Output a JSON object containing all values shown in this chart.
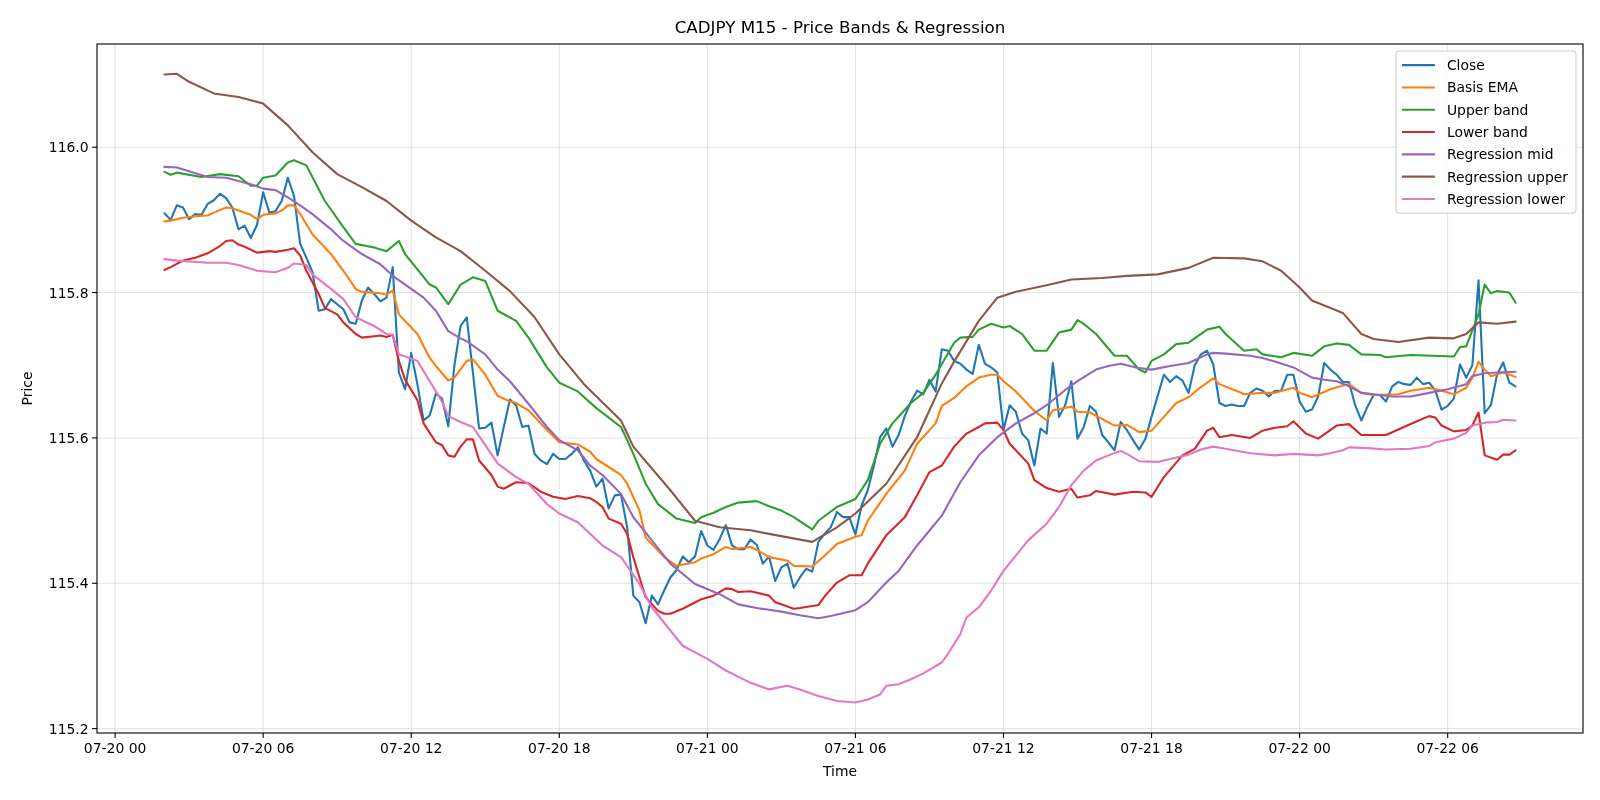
{
  "chart_data": {
    "type": "line",
    "title": "CADJPY M15 - Price Bands & Regression",
    "xlabel": "Time",
    "ylabel": "Price",
    "xlim": [
      "--07-19T23:16",
      "--07-22T11:29"
    ],
    "ylim": [
      115.194,
      116.142
    ],
    "xticks": [
      {
        "value": "--07-20T00:00",
        "label": "07-20 00"
      },
      {
        "value": "--07-20T06:00",
        "label": "07-20 06"
      },
      {
        "value": "--07-20T12:00",
        "label": "07-20 12"
      },
      {
        "value": "--07-20T18:00",
        "label": "07-20 18"
      },
      {
        "value": "--07-21T00:00",
        "label": "07-21 00"
      },
      {
        "value": "--07-21T06:00",
        "label": "07-21 06"
      },
      {
        "value": "--07-21T12:00",
        "label": "07-21 12"
      },
      {
        "value": "--07-21T18:00",
        "label": "07-21 18"
      },
      {
        "value": "--07-22T00:00",
        "label": "07-22 00"
      },
      {
        "value": "--07-22T06:00",
        "label": "07-22 06"
      }
    ],
    "yticks": [
      115.2,
      115.4,
      115.6,
      115.8,
      {
        "value": 116,
        "label": "116.0"
      }
    ],
    "grid": true,
    "legend": "top right",
    "series": [
      {
        "name": "Close",
        "color": "#1f77b4",
        "x": [
          "--07-20T02:00",
          "--07-20T02:15",
          "--07-20T02:30",
          "--07-20T02:45",
          "--07-20T03:00",
          "--07-20T03:15",
          "--07-20T03:30",
          "--07-20T03:45",
          "--07-20T04:00",
          "--07-20T04:15",
          "--07-20T04:30",
          "--07-20T04:45",
          "--07-20T05:00",
          "--07-20T05:15",
          "--07-20T05:30",
          "--07-20T05:45",
          "--07-20T06:00",
          "--07-20T06:15",
          "--07-20T06:30",
          "--07-20T06:45",
          "--07-20T07:00",
          "--07-20T07:15",
          "--07-20T07:30",
          "--07-20T07:45",
          "--07-20T08:00",
          "--07-20T08:15",
          "--07-20T08:30",
          "--07-20T08:45",
          "--07-20T09:00",
          "--07-20T09:15",
          "--07-20T09:30",
          "--07-20T09:45",
          "--07-20T10:00",
          "--07-20T10:15",
          "--07-20T10:30",
          "--07-20T10:45",
          "--07-20T11:00",
          "--07-20T11:15",
          "--07-20T11:30",
          "--07-20T11:45",
          "--07-20T12:00",
          "--07-20T12:15",
          "--07-20T12:30",
          "--07-20T12:45",
          "--07-20T13:00",
          "--07-20T13:15",
          "--07-20T13:30",
          "--07-20T13:45",
          "--07-20T14:00",
          "--07-20T14:15",
          "--07-20T14:30",
          "--07-20T14:45",
          "--07-20T15:00",
          "--07-20T15:15",
          "--07-20T15:30",
          "--07-20T15:45",
          "--07-20T16:00",
          "--07-20T16:15",
          "--07-20T16:30",
          "--07-20T16:45",
          "--07-20T17:00",
          "--07-20T17:15",
          "--07-20T17:30",
          "--07-20T17:45",
          "--07-20T18:00",
          "--07-20T18:15",
          "--07-20T18:30",
          "--07-20T18:45",
          "--07-20T19:00",
          "--07-20T19:15",
          "--07-20T19:30",
          "--07-20T19:45",
          "--07-20T20:00",
          "--07-20T20:15",
          "--07-20T20:30",
          "--07-20T20:45",
          "--07-20T21:00",
          "--07-20T21:15",
          "--07-20T21:30",
          "--07-20T21:45",
          "--07-20T22:00",
          "--07-20T22:15",
          "--07-20T22:30",
          "--07-20T22:45",
          "--07-20T23:00",
          "--07-20T23:15",
          "--07-20T23:30",
          "--07-20T23:45",
          "--07-21T00:00",
          "--07-21T00:15",
          "--07-21T00:30",
          "--07-21T00:45",
          "--07-21T01:00",
          "--07-21T01:15",
          "--07-21T01:30",
          "--07-21T01:45",
          "--07-21T02:00",
          "--07-21T02:15",
          "--07-21T02:30",
          "--07-21T02:45",
          "--07-21T03:00",
          "--07-21T03:15",
          "--07-21T03:30",
          "--07-21T03:45",
          "--07-21T04:00",
          "--07-21T04:15",
          "--07-21T04:30",
          "--07-21T04:45",
          "--07-21T05:00",
          "--07-21T05:15",
          "--07-21T05:30",
          "--07-21T05:45",
          "--07-21T06:00",
          "--07-21T06:15",
          "--07-21T06:30",
          "--07-21T06:45",
          "--07-21T07:00",
          "--07-21T07:15",
          "--07-21T07:30",
          "--07-21T07:45",
          "--07-21T08:00",
          "--07-21T08:15",
          "--07-21T08:30",
          "--07-21T08:45",
          "--07-21T09:00",
          "--07-21T09:15",
          "--07-21T09:30",
          "--07-21T09:45",
          "--07-21T10:00",
          "--07-21T10:15",
          "--07-21T10:30",
          "--07-21T10:45",
          "--07-21T11:00",
          "--07-21T11:15",
          "--07-21T11:30",
          "--07-21T11:45",
          "--07-21T12:00",
          "--07-21T12:15",
          "--07-21T12:30",
          "--07-21T12:45",
          "--07-21T13:00",
          "--07-21T13:15",
          "--07-21T13:30",
          "--07-21T13:45",
          "--07-21T14:00",
          "--07-21T14:15",
          "--07-21T14:30",
          "--07-21T14:45",
          "--07-21T15:00",
          "--07-21T15:15",
          "--07-21T15:30",
          "--07-21T15:45",
          "--07-21T16:00",
          "--07-21T16:15",
          "--07-21T16:30",
          "--07-21T16:45",
          "--07-21T17:00",
          "--07-21T17:15",
          "--07-21T17:30",
          "--07-21T17:45",
          "--07-21T18:00",
          "--07-21T18:15",
          "--07-21T18:30",
          "--07-21T18:45",
          "--07-21T19:00",
          "--07-21T19:15",
          "--07-21T19:30",
          "--07-21T19:45",
          "--07-21T20:00",
          "--07-21T20:15",
          "--07-21T20:30",
          "--07-21T20:45",
          "--07-21T21:00",
          "--07-21T21:15",
          "--07-21T21:30",
          "--07-21T21:45",
          "--07-21T22:00",
          "--07-21T22:15",
          "--07-21T22:30",
          "--07-21T22:45",
          "--07-21T23:00",
          "--07-21T23:15",
          "--07-21T23:30",
          "--07-21T23:45",
          "--07-22T00:00",
          "--07-22T00:15",
          "--07-22T00:30",
          "--07-22T00:45",
          "--07-22T01:00",
          "--07-22T01:15",
          "--07-22T01:30",
          "--07-22T01:45",
          "--07-22T02:00",
          "--07-22T02:15",
          "--07-22T02:30",
          "--07-22T02:45",
          "--07-22T03:00",
          "--07-22T03:15",
          "--07-22T03:30",
          "--07-22T03:45",
          "--07-22T04:00",
          "--07-22T04:15",
          "--07-22T04:30",
          "--07-22T04:45",
          "--07-22T05:00",
          "--07-22T05:15",
          "--07-22T05:30",
          "--07-22T05:45",
          "--07-22T06:00",
          "--07-22T06:15",
          "--07-22T06:30",
          "--07-22T06:45",
          "--07-22T07:00",
          "--07-22T07:15",
          "--07-22T07:30",
          "--07-22T07:45",
          "--07-22T08:00",
          "--07-22T08:15",
          "--07-22T08:30",
          "--07-22T08:45"
        ],
        "values": [
          115.909,
          115.9,
          115.92,
          115.917,
          115.901,
          115.908,
          115.907,
          115.922,
          115.927,
          115.936,
          115.93,
          115.917,
          115.887,
          115.892,
          115.875,
          115.893,
          115.938,
          115.91,
          115.912,
          115.926,
          115.958,
          115.933,
          115.867,
          115.848,
          115.828,
          115.775,
          115.777,
          115.791,
          115.784,
          115.777,
          115.759,
          115.757,
          115.789,
          115.807,
          115.798,
          115.788,
          115.793,
          115.835,
          115.69,
          115.667,
          115.717,
          115.674,
          115.624,
          115.631,
          115.661,
          115.654,
          115.616,
          115.7,
          115.754,
          115.766,
          115.69,
          115.613,
          115.614,
          115.621,
          115.576,
          115.615,
          115.653,
          115.645,
          115.615,
          115.617,
          115.578,
          115.569,
          115.564,
          115.578,
          115.571,
          115.571,
          115.578,
          115.587,
          115.569,
          115.555,
          115.533,
          115.544,
          115.503,
          115.521,
          115.522,
          115.477,
          115.383,
          115.374,
          115.345,
          115.383,
          115.371,
          115.39,
          115.408,
          115.418,
          115.437,
          115.429,
          115.437,
          115.472,
          115.452,
          115.446,
          115.461,
          115.48,
          115.452,
          115.447,
          115.447,
          115.46,
          115.453,
          115.427,
          115.437,
          115.403,
          115.422,
          115.427,
          115.394,
          115.408,
          115.42,
          115.416,
          115.457,
          115.468,
          115.477,
          115.498,
          115.491,
          115.491,
          115.467,
          115.507,
          115.528,
          115.562,
          115.601,
          115.613,
          115.588,
          115.604,
          115.63,
          115.65,
          115.665,
          115.66,
          115.68,
          115.664,
          115.722,
          115.72,
          115.706,
          115.702,
          115.694,
          115.688,
          115.728,
          115.702,
          115.697,
          115.69,
          115.611,
          115.645,
          115.636,
          115.606,
          115.597,
          115.562,
          115.613,
          115.606,
          115.703,
          115.629,
          115.645,
          115.678,
          115.599,
          115.615,
          115.644,
          115.636,
          115.604,
          115.594,
          115.583,
          115.622,
          115.611,
          115.597,
          115.584,
          115.599,
          115.629,
          115.658,
          115.687,
          115.677,
          115.685,
          115.679,
          115.662,
          115.7,
          115.715,
          115.72,
          115.701,
          115.648,
          115.644,
          115.646,
          115.644,
          115.644,
          115.662,
          115.668,
          115.665,
          115.657,
          115.665,
          115.665,
          115.687,
          115.687,
          115.65,
          115.636,
          115.639,
          115.657,
          115.703,
          115.694,
          115.687,
          115.677,
          115.677,
          115.645,
          115.624,
          115.643,
          115.659,
          115.659,
          115.65,
          115.671,
          115.677,
          115.674,
          115.673,
          115.683,
          115.674,
          115.676,
          115.665,
          115.639,
          115.644,
          115.654,
          115.701,
          115.683,
          115.7,
          115.817,
          115.634,
          115.645,
          115.687,
          115.704,
          115.676,
          115.671
        ]
      },
      {
        "name": "Basis EMA",
        "color": "#ff7f0e",
        "x": [
          "--07-20T02:00",
          "--07-20T02:15",
          "--07-20T02:45",
          "--07-20T03:15",
          "--07-20T03:45",
          "--07-20T04:00",
          "--07-20T04:30",
          "--07-20T04:45",
          "--07-20T05:30",
          "--07-20T05:45",
          "--07-20T06:00",
          "--07-20T06:30",
          "--07-20T06:45",
          "--07-20T07:00",
          "--07-20T07:15",
          "--07-20T07:30",
          "--07-20T08:00",
          "--07-20T08:45",
          "--07-20T09:15",
          "--07-20T09:45",
          "--07-20T10:00",
          "--07-20T10:45",
          "--07-20T11:00",
          "--07-20T11:15",
          "--07-20T11:30",
          "--07-20T12:15",
          "--07-20T12:45",
          "--07-20T13:00",
          "--07-20T13:30",
          "--07-20T13:45",
          "--07-20T14:15",
          "--07-20T14:30",
          "--07-20T15:00",
          "--07-20T15:30",
          "--07-20T16:00",
          "--07-20T16:15",
          "--07-20T16:45",
          "--07-20T17:30",
          "--07-20T18:00",
          "--07-20T18:45",
          "--07-20T19:15",
          "--07-20T19:30",
          "--07-20T20:00",
          "--07-20T20:30",
          "--07-20T20:45",
          "--07-20T21:15",
          "--07-20T21:30",
          "--07-20T22:15",
          "--07-20T22:45",
          "--07-20T23:30",
          "--07-20T23:45",
          "--07-21T00:15",
          "--07-21T00:45",
          "--07-21T01:00",
          "--07-21T01:45",
          "--07-21T02:00",
          "--07-21T02:30",
          "--07-21T03:15",
          "--07-21T03:30",
          "--07-21T04:15",
          "--07-21T04:45",
          "--07-21T05:15",
          "--07-21T06:00",
          "--07-21T06:15",
          "--07-21T06:30",
          "--07-21T07:15",
          "--07-21T08:00",
          "--07-21T08:30",
          "--07-21T09:15",
          "--07-21T09:30",
          "--07-21T10:00",
          "--07-21T10:30",
          "--07-21T11:00",
          "--07-21T11:30",
          "--07-21T11:45",
          "--07-21T12:00",
          "--07-21T12:30",
          "--07-21T13:00",
          "--07-21T13:15",
          "--07-21T13:45",
          "--07-21T14:00",
          "--07-21T14:45",
          "--07-21T15:00",
          "--07-21T15:30",
          "--07-21T16:30",
          "--07-21T17:00",
          "--07-21T17:30",
          "--07-21T18:00",
          "--07-21T18:30",
          "--07-21T19:00",
          "--07-21T19:30",
          "--07-21T20:00",
          "--07-21T20:30",
          "--07-21T20:45",
          "--07-21T21:30",
          "--07-21T21:45",
          "--07-21T22:30",
          "--07-21T23:00",
          "--07-21T23:45",
          "--07-22T00:00",
          "--07-22T00:30",
          "--07-22T01:15",
          "--07-22T01:45",
          "--07-22T02:00",
          "--07-22T02:30",
          "--07-22T03:00",
          "--07-22T04:00",
          "--07-22T04:30",
          "--07-22T05:15",
          "--07-22T05:45",
          "--07-22T06:15",
          "--07-22T06:45",
          "--07-22T07:00",
          "--07-22T07:15",
          "--07-22T07:30",
          "--07-22T07:45",
          "--07-22T08:15",
          "--07-22T08:45"
        ],
        "values": [
          115.898,
          115.899,
          115.903,
          115.905,
          115.906,
          115.91,
          115.917,
          115.916,
          115.907,
          115.901,
          115.907,
          115.909,
          115.913,
          115.92,
          115.92,
          115.908,
          115.88,
          115.853,
          115.83,
          115.805,
          115.801,
          115.799,
          115.797,
          115.803,
          115.77,
          115.743,
          115.71,
          115.699,
          115.679,
          115.683,
          115.706,
          115.708,
          115.687,
          115.658,
          115.65,
          115.648,
          115.638,
          115.611,
          115.594,
          115.591,
          115.581,
          115.571,
          115.56,
          115.549,
          115.537,
          115.5,
          115.463,
          115.436,
          115.424,
          115.429,
          115.434,
          115.44,
          115.45,
          115.447,
          115.45,
          115.446,
          115.436,
          115.431,
          115.424,
          115.423,
          115.438,
          115.454,
          115.464,
          115.466,
          115.486,
          115.523,
          115.555,
          115.592,
          115.62,
          115.644,
          115.655,
          115.671,
          115.683,
          115.687,
          115.687,
          115.678,
          115.664,
          115.646,
          115.637,
          115.624,
          115.638,
          115.643,
          115.636,
          115.635,
          115.617,
          115.618,
          115.608,
          115.61,
          115.629,
          115.648,
          115.656,
          115.67,
          115.682,
          115.674,
          115.664,
          115.66,
          115.662,
          115.662,
          115.669,
          115.662,
          115.656,
          115.667,
          115.672,
          115.674,
          115.662,
          115.659,
          115.66,
          115.665,
          115.669,
          115.665,
          115.66,
          115.669,
          115.683,
          115.705,
          115.694,
          115.685,
          115.69,
          115.684
        ]
      },
      {
        "name": "Upper band",
        "color": "#2ca02c",
        "x": [
          "--07-20T02:00",
          "--07-20T02:15",
          "--07-20T02:30",
          "--07-20T03:30",
          "--07-20T04:15",
          "--07-20T05:00",
          "--07-20T05:30",
          "--07-20T05:45",
          "--07-20T06:00",
          "--07-20T06:30",
          "--07-20T07:00",
          "--07-20T07:15",
          "--07-20T07:45",
          "--07-20T08:30",
          "--07-20T09:15",
          "--07-20T09:45",
          "--07-20T10:30",
          "--07-20T11:00",
          "--07-20T11:30",
          "--07-20T11:45",
          "--07-20T12:45",
          "--07-20T13:00",
          "--07-20T13:30",
          "--07-20T14:00",
          "--07-20T14:30",
          "--07-20T15:00",
          "--07-20T15:30",
          "--07-20T16:15",
          "--07-20T16:45",
          "--07-20T17:30",
          "--07-20T18:00",
          "--07-20T18:45",
          "--07-20T19:30",
          "--07-20T20:30",
          "--07-20T20:45",
          "--07-20T21:00",
          "--07-20T21:30",
          "--07-20T22:00",
          "--07-20T22:45",
          "--07-20T23:30",
          "--07-20T23:45",
          "--07-21T00:15",
          "--07-21T00:45",
          "--07-21T01:15",
          "--07-21T02:00",
          "--07-21T02:30",
          "--07-21T03:00",
          "--07-21T03:30",
          "--07-21T04:15",
          "--07-21T04:30",
          "--07-21T05:15",
          "--07-21T06:00",
          "--07-21T06:30",
          "--07-21T07:00",
          "--07-21T07:30",
          "--07-21T08:15",
          "--07-21T08:45",
          "--07-21T09:15",
          "--07-21T10:00",
          "--07-21T10:15",
          "--07-21T10:45",
          "--07-21T11:00",
          "--07-21T11:30",
          "--07-21T12:00",
          "--07-21T12:15",
          "--07-21T12:45",
          "--07-21T13:15",
          "--07-21T13:45",
          "--07-21T14:15",
          "--07-21T14:45",
          "--07-21T15:00",
          "--07-21T15:15",
          "--07-21T15:45",
          "--07-21T16:30",
          "--07-21T17:00",
          "--07-21T17:30",
          "--07-21T17:45",
          "--07-21T18:00",
          "--07-21T18:30",
          "--07-21T19:00",
          "--07-21T19:30",
          "--07-21T20:15",
          "--07-21T20:45",
          "--07-21T21:00",
          "--07-21T21:45",
          "--07-21T22:15",
          "--07-21T22:30",
          "--07-21T23:15",
          "--07-21T23:45",
          "--07-22T00:30",
          "--07-22T01:00",
          "--07-22T01:30",
          "--07-22T02:00",
          "--07-22T02:30",
          "--07-22T03:15",
          "--07-22T03:30",
          "--07-22T04:30",
          "--07-22T06:15",
          "--07-22T06:30",
          "--07-22T06:45",
          "--07-22T07:15",
          "--07-22T07:30",
          "--07-22T07:45",
          "--07-22T08:00",
          "--07-22T08:30",
          "--07-22T08:45"
        ],
        "values": [
          115.966,
          115.962,
          115.965,
          115.959,
          115.963,
          115.96,
          115.947,
          115.947,
          115.958,
          115.961,
          115.979,
          115.982,
          115.975,
          115.926,
          115.89,
          115.867,
          115.862,
          115.857,
          115.871,
          115.853,
          115.811,
          115.807,
          115.784,
          115.811,
          115.821,
          115.816,
          115.775,
          115.761,
          115.738,
          115.697,
          115.676,
          115.664,
          115.641,
          115.615,
          115.597,
          115.578,
          115.537,
          115.509,
          115.489,
          115.483,
          115.491,
          115.497,
          115.505,
          115.511,
          115.513,
          115.506,
          115.5,
          115.491,
          115.474,
          115.486,
          115.505,
          115.516,
          115.542,
          115.592,
          115.62,
          115.648,
          115.662,
          115.687,
          115.731,
          115.738,
          115.739,
          115.749,
          115.757,
          115.752,
          115.754,
          115.743,
          115.72,
          115.72,
          115.745,
          115.749,
          115.762,
          115.757,
          115.743,
          115.713,
          115.713,
          115.694,
          115.69,
          115.706,
          115.715,
          115.729,
          115.731,
          115.749,
          115.753,
          115.743,
          115.72,
          115.722,
          115.715,
          115.711,
          115.717,
          115.713,
          115.726,
          115.73,
          115.728,
          115.715,
          115.714,
          115.711,
          115.714,
          115.712,
          115.725,
          115.726,
          115.77,
          115.811,
          115.799,
          115.802,
          115.8,
          115.786
        ]
      },
      {
        "name": "Lower band",
        "color": "#d62728",
        "x": [
          "--07-20T02:00",
          "--07-20T02:15",
          "--07-20T02:45",
          "--07-20T03:15",
          "--07-20T03:45",
          "--07-20T04:15",
          "--07-20T04:30",
          "--07-20T04:45",
          "--07-20T05:00",
          "--07-20T05:15",
          "--07-20T05:45",
          "--07-20T06:15",
          "--07-20T06:30",
          "--07-20T07:00",
          "--07-20T07:15",
          "--07-20T07:30",
          "--07-20T07:45",
          "--07-20T08:15",
          "--07-20T08:30",
          "--07-20T09:00",
          "--07-20T09:15",
          "--07-20T09:45",
          "--07-20T10:00",
          "--07-20T10:30",
          "--07-20T10:45",
          "--07-20T11:00",
          "--07-20T11:15",
          "--07-20T11:30",
          "--07-20T11:45",
          "--07-20T12:15",
          "--07-20T12:30",
          "--07-20T13:00",
          "--07-20T13:15",
          "--07-20T13:30",
          "--07-20T13:45",
          "--07-20T14:00",
          "--07-20T14:15",
          "--07-20T14:30",
          "--07-20T14:45",
          "--07-20T15:15",
          "--07-20T15:30",
          "--07-20T15:45",
          "--07-20T16:15",
          "--07-20T16:45",
          "--07-20T17:15",
          "--07-20T17:45",
          "--07-20T18:15",
          "--07-20T18:45",
          "--07-20T19:15",
          "--07-20T19:30",
          "--07-20T19:45",
          "--07-20T20:00",
          "--07-20T20:30",
          "--07-20T20:45",
          "--07-20T21:00",
          "--07-20T21:15",
          "--07-20T21:30",
          "--07-20T22:00",
          "--07-20T22:15",
          "--07-20T22:30",
          "--07-20T23:00",
          "--07-20T23:45",
          "--07-21T00:15",
          "--07-21T00:45",
          "--07-21T01:00",
          "--07-21T01:15",
          "--07-21T01:45",
          "--07-21T02:30",
          "--07-21T02:45",
          "--07-21T03:00",
          "--07-21T03:30",
          "--07-21T03:45",
          "--07-21T04:30",
          "--07-21T04:45",
          "--07-21T05:15",
          "--07-21T05:45",
          "--07-21T06:15",
          "--07-21T06:30",
          "--07-21T07:15",
          "--07-21T08:00",
          "--07-21T08:30",
          "--07-21T09:00",
          "--07-21T09:30",
          "--07-21T10:00",
          "--07-21T10:30",
          "--07-21T11:00",
          "--07-21T11:15",
          "--07-21T11:45",
          "--07-21T12:00",
          "--07-21T12:15",
          "--07-21T12:30",
          "--07-21T13:00",
          "--07-21T13:15",
          "--07-21T13:45",
          "--07-21T14:15",
          "--07-21T14:45",
          "--07-21T15:00",
          "--07-21T15:30",
          "--07-21T15:45",
          "--07-21T16:30",
          "--07-21T17:15",
          "--07-21T17:45",
          "--07-21T18:00",
          "--07-21T18:30",
          "--07-21T19:15",
          "--07-21T19:45",
          "--07-21T20:15",
          "--07-21T20:30",
          "--07-21T20:45",
          "--07-21T21:15",
          "--07-21T22:00",
          "--07-21T22:30",
          "--07-21T23:00",
          "--07-21T23:30",
          "--07-21T23:45",
          "--07-22T00:15",
          "--07-22T00:45",
          "--07-22T01:30",
          "--07-22T02:00",
          "--07-22T02:30",
          "--07-22T03:30",
          "--07-22T04:45",
          "--07-22T05:15",
          "--07-22T05:30",
          "--07-22T05:45",
          "--07-22T06:15",
          "--07-22T06:45",
          "--07-22T07:00",
          "--07-22T07:15",
          "--07-22T07:30",
          "--07-22T08:00",
          "--07-22T08:15",
          "--07-22T08:30",
          "--07-22T08:45"
        ],
        "values": [
          115.831,
          115.835,
          115.844,
          115.848,
          115.854,
          115.864,
          115.871,
          115.872,
          115.866,
          115.863,
          115.855,
          115.857,
          115.856,
          115.859,
          115.861,
          115.851,
          115.83,
          115.798,
          115.779,
          115.77,
          115.759,
          115.743,
          115.738,
          115.74,
          115.741,
          115.739,
          115.742,
          115.706,
          115.68,
          115.652,
          115.62,
          115.594,
          115.59,
          115.576,
          115.574,
          115.588,
          115.598,
          115.598,
          115.569,
          115.549,
          115.533,
          115.53,
          115.539,
          115.538,
          115.526,
          115.519,
          115.516,
          115.52,
          115.517,
          115.512,
          115.505,
          115.489,
          115.482,
          115.468,
          115.436,
          115.408,
          115.381,
          115.362,
          115.358,
          115.358,
          115.365,
          115.378,
          115.383,
          115.393,
          115.392,
          115.388,
          115.389,
          115.383,
          115.374,
          115.371,
          115.365,
          115.366,
          115.37,
          115.382,
          115.401,
          115.411,
          115.411,
          115.427,
          115.466,
          115.491,
          115.521,
          115.553,
          115.562,
          115.588,
          115.606,
          115.615,
          115.62,
          115.621,
          115.611,
          115.592,
          115.583,
          115.565,
          115.542,
          115.531,
          115.526,
          115.53,
          115.518,
          115.521,
          115.527,
          115.522,
          115.526,
          115.525,
          115.519,
          115.546,
          115.576,
          115.585,
          115.61,
          115.614,
          115.601,
          115.604,
          115.6,
          115.61,
          115.614,
          115.616,
          115.623,
          115.606,
          115.599,
          115.617,
          115.619,
          115.604,
          115.604,
          115.623,
          115.63,
          115.628,
          115.617,
          115.609,
          115.611,
          115.617,
          115.635,
          115.576,
          115.57,
          115.577,
          115.577,
          115.583
        ]
      },
      {
        "name": "Regression mid",
        "color": "#9467bd",
        "x": [
          "--07-20T02:00",
          "--07-20T02:30",
          "--07-20T03:00",
          "--07-20T03:45",
          "--07-20T04:30",
          "--07-20T05:30",
          "--07-20T06:00",
          "--07-20T06:30",
          "--07-20T07:00",
          "--07-20T07:30",
          "--07-20T08:00",
          "--07-20T08:45",
          "--07-20T09:15",
          "--07-20T10:00",
          "--07-20T10:45",
          "--07-20T11:15",
          "--07-20T12:00",
          "--07-20T12:30",
          "--07-20T13:00",
          "--07-20T13:30",
          "--07-20T14:00",
          "--07-20T14:15",
          "--07-20T15:00",
          "--07-20T15:30",
          "--07-20T16:00",
          "--07-20T16:45",
          "--07-20T17:30",
          "--07-20T18:00",
          "--07-20T18:45",
          "--07-20T19:15",
          "--07-20T19:45",
          "--07-20T20:30",
          "--07-20T21:00",
          "--07-20T21:45",
          "--07-20T22:30",
          "--07-20T23:30",
          "--07-21T00:30",
          "--07-21T01:15",
          "--07-21T02:00",
          "--07-21T03:00",
          "--07-21T03:45",
          "--07-21T04:30",
          "--07-21T05:00",
          "--07-21T06:00",
          "--07-21T06:30",
          "--07-21T07:15",
          "--07-21T07:45",
          "--07-21T08:30",
          "--07-21T09:30",
          "--07-21T10:15",
          "--07-21T11:00",
          "--07-21T11:45",
          "--07-21T12:30",
          "--07-21T13:15",
          "--07-21T13:45",
          "--07-21T14:30",
          "--07-21T15:00",
          "--07-21T15:45",
          "--07-21T16:15",
          "--07-21T16:45",
          "--07-21T17:00",
          "--07-21T17:30",
          "--07-21T18:00",
          "--07-21T18:45",
          "--07-21T19:30",
          "--07-21T20:15",
          "--07-21T20:30",
          "--07-21T21:00",
          "--07-21T22:00",
          "--07-21T22:30",
          "--07-21T23:00",
          "--07-21T23:45",
          "--07-22T00:30",
          "--07-22T01:00",
          "--07-22T01:30",
          "--07-22T02:00",
          "--07-22T02:30",
          "--07-22T03:00",
          "--07-22T03:45",
          "--07-22T04:30",
          "--07-22T05:15",
          "--07-22T06:00",
          "--07-22T06:45",
          "--07-22T07:00",
          "--07-22T07:30",
          "--07-22T08:00",
          "--07-22T08:45"
        ],
        "values": [
          115.973,
          115.972,
          115.967,
          115.959,
          115.958,
          115.949,
          115.943,
          115.941,
          115.931,
          115.92,
          115.908,
          115.887,
          115.871,
          115.853,
          115.839,
          115.823,
          115.805,
          115.793,
          115.775,
          115.747,
          115.737,
          115.733,
          115.715,
          115.694,
          115.678,
          115.647,
          115.615,
          115.597,
          115.583,
          115.562,
          115.549,
          115.523,
          115.491,
          115.459,
          115.427,
          115.399,
          115.385,
          115.371,
          115.366,
          115.361,
          115.356,
          115.352,
          115.355,
          115.363,
          115.374,
          115.401,
          115.417,
          115.452,
          115.493,
          115.539,
          115.576,
          115.601,
          115.62,
          115.634,
          115.645,
          115.666,
          115.678,
          115.694,
          115.699,
          115.702,
          115.7,
          115.696,
          115.694,
          115.699,
          115.703,
          115.715,
          115.717,
          115.716,
          115.713,
          115.71,
          115.705,
          115.697,
          115.683,
          115.68,
          115.678,
          115.671,
          115.662,
          115.66,
          115.657,
          115.657,
          115.662,
          115.667,
          115.674,
          115.685,
          115.689,
          115.69,
          115.691
        ]
      },
      {
        "name": "Regression upper",
        "color": "#8c564b",
        "x": [
          "--07-20T02:00",
          "--07-20T02:30",
          "--07-20T03:00",
          "--07-20T04:00",
          "--07-20T05:00",
          "--07-20T06:00",
          "--07-20T07:00",
          "--07-20T08:00",
          "--07-20T09:00",
          "--07-20T10:00",
          "--07-20T11:00",
          "--07-20T12:00",
          "--07-20T13:00",
          "--07-20T14:00",
          "--07-20T15:00",
          "--07-20T16:00",
          "--07-20T17:00",
          "--07-20T18:00",
          "--07-20T19:00",
          "--07-20T20:30",
          "--07-20T21:00",
          "--07-20T22:30",
          "--07-20T23:30",
          "--07-21T00:30",
          "--07-21T01:45",
          "--07-21T02:30",
          "--07-21T04:15",
          "--07-21T05:15",
          "--07-21T06:00",
          "--07-21T07:15",
          "--07-21T08:30",
          "--07-21T09:30",
          "--07-21T10:00",
          "--07-21T11:00",
          "--07-21T11:45",
          "--07-21T12:30",
          "--07-21T13:45",
          "--07-21T14:45",
          "--07-21T16:00",
          "--07-21T17:00",
          "--07-21T18:15",
          "--07-21T19:30",
          "--07-21T20:30",
          "--07-21T21:45",
          "--07-21T22:30",
          "--07-21T23:15",
          "--07-22T00:00",
          "--07-22T00:30",
          "--07-22T01:45",
          "--07-22T02:30",
          "--07-22T03:00",
          "--07-22T04:00",
          "--07-22T05:15",
          "--07-22T06:15",
          "--07-22T06:45",
          "--07-22T07:15",
          "--07-22T08:00",
          "--07-22T08:45"
        ],
        "values": [
          116.1,
          116.101,
          116.09,
          116.074,
          116.069,
          116.06,
          116.03,
          115.993,
          115.963,
          115.945,
          115.926,
          115.899,
          115.876,
          115.857,
          115.83,
          115.802,
          115.766,
          115.715,
          115.674,
          115.624,
          115.588,
          115.528,
          115.486,
          115.477,
          115.473,
          115.468,
          115.457,
          115.477,
          115.496,
          115.537,
          115.601,
          115.675,
          115.705,
          115.761,
          115.793,
          115.801,
          115.81,
          115.818,
          115.82,
          115.823,
          115.825,
          115.834,
          115.848,
          115.847,
          115.843,
          115.83,
          115.807,
          115.789,
          115.772,
          115.743,
          115.736,
          115.732,
          115.738,
          115.737,
          115.743,
          115.759,
          115.757,
          115.76
        ]
      },
      {
        "name": "Regression lower",
        "color": "#e377c2",
        "x": [
          "--07-20T02:00",
          "--07-20T02:30",
          "--07-20T03:45",
          "--07-20T04:30",
          "--07-20T05:00",
          "--07-20T05:45",
          "--07-20T06:30",
          "--07-20T07:00",
          "--07-20T07:15",
          "--07-20T07:45",
          "--07-20T08:00",
          "--07-20T08:45",
          "--07-20T09:15",
          "--07-20T09:45",
          "--07-20T10:30",
          "--07-20T11:00",
          "--07-20T11:15",
          "--07-20T11:30",
          "--07-20T12:15",
          "--07-20T12:45",
          "--07-20T13:15",
          "--07-20T13:30",
          "--07-20T14:00",
          "--07-20T14:30",
          "--07-20T15:00",
          "--07-20T15:30",
          "--07-20T16:15",
          "--07-20T16:45",
          "--07-20T17:30",
          "--07-20T18:00",
          "--07-20T18:45",
          "--07-20T19:15",
          "--07-20T19:45",
          "--07-20T20:30",
          "--07-20T20:45",
          "--07-20T21:15",
          "--07-20T21:45",
          "--07-20T22:30",
          "--07-20T23:00",
          "--07-21T00:00",
          "--07-21T00:45",
          "--07-21T01:45",
          "--07-21T02:30",
          "--07-21T03:15",
          "--07-21T03:45",
          "--07-21T04:30",
          "--07-21T05:15",
          "--07-21T06:00",
          "--07-21T06:30",
          "--07-21T07:00",
          "--07-21T07:15",
          "--07-21T07:45",
          "--07-21T08:15",
          "--07-21T08:45",
          "--07-21T09:30",
          "--07-21T09:45",
          "--07-21T10:15",
          "--07-21T10:30",
          "--07-21T11:00",
          "--07-21T11:30",
          "--07-21T12:00",
          "--07-21T13:00",
          "--07-21T13:45",
          "--07-21T14:15",
          "--07-21T14:45",
          "--07-21T15:15",
          "--07-21T15:45",
          "--07-21T16:15",
          "--07-21T16:45",
          "--07-21T17:00",
          "--07-21T17:30",
          "--07-21T18:15",
          "--07-21T19:00",
          "--07-21T19:30",
          "--07-21T20:00",
          "--07-21T20:30",
          "--07-21T21:00",
          "--07-21T22:00",
          "--07-21T23:00",
          "--07-21T23:45",
          "--07-22T00:45",
          "--07-22T01:15",
          "--07-22T01:45",
          "--07-22T02:00",
          "--07-22T02:45",
          "--07-22T03:30",
          "--07-22T04:30",
          "--07-22T05:15",
          "--07-22T05:30",
          "--07-22T06:15",
          "--07-22T06:45",
          "--07-22T07:00",
          "--07-22T07:30",
          "--07-22T08:00",
          "--07-22T08:15",
          "--07-22T08:45"
        ],
        "values": [
          115.846,
          115.844,
          115.841,
          115.841,
          115.838,
          115.83,
          115.828,
          115.834,
          115.84,
          115.838,
          115.825,
          115.805,
          115.791,
          115.766,
          115.754,
          115.743,
          115.742,
          115.715,
          115.706,
          115.678,
          115.65,
          115.63,
          115.622,
          115.615,
          115.59,
          115.565,
          115.546,
          115.537,
          115.509,
          115.496,
          115.484,
          115.468,
          115.452,
          115.436,
          115.424,
          115.399,
          115.367,
          115.335,
          115.314,
          115.296,
          115.28,
          115.263,
          115.254,
          115.259,
          115.254,
          115.245,
          115.238,
          115.236,
          115.24,
          115.247,
          115.259,
          115.261,
          115.268,
          115.276,
          115.291,
          115.303,
          115.33,
          115.353,
          115.367,
          115.39,
          115.417,
          115.459,
          115.482,
          115.505,
          115.535,
          115.555,
          115.569,
          115.576,
          115.582,
          115.578,
          115.568,
          115.567,
          115.573,
          115.577,
          115.584,
          115.588,
          115.585,
          115.579,
          115.576,
          115.578,
          115.576,
          115.579,
          115.583,
          115.587,
          115.586,
          115.584,
          115.585,
          115.589,
          115.594,
          115.599,
          115.607,
          115.617,
          115.621,
          115.622,
          115.625,
          115.624
        ]
      }
    ]
  }
}
